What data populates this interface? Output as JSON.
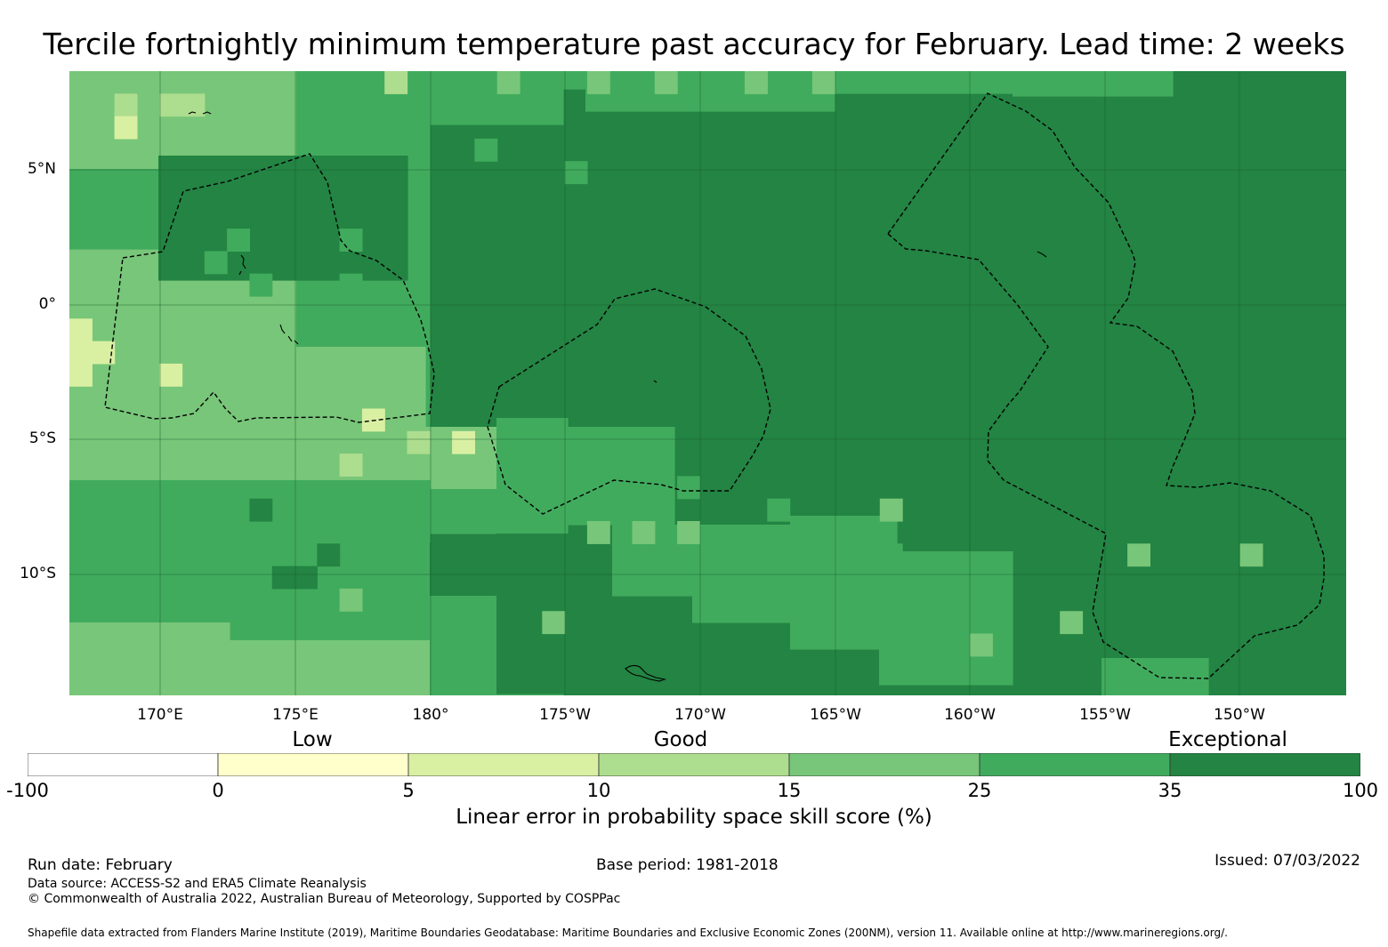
{
  "title": "Tercile fortnightly minimum temperature past accuracy for February. Lead time: 2 weeks",
  "map": {
    "lat_labels": [
      "5°N",
      "0°",
      "5°S",
      "10°S"
    ],
    "lon_labels": [
      "170°E",
      "175°E",
      "180°",
      "175°W",
      "170°W",
      "165°W",
      "160°W",
      "155°W",
      "150°W"
    ],
    "colors": {
      "exceptional": "#238443",
      "good_high": "#41ab5d",
      "good_mid": "#78c679",
      "good_low": "#addd8e",
      "low_high": "#d9f0a3",
      "low": "#ffffcc",
      "none": "#ffffff",
      "grid": "#1a5c2e",
      "boundary": "#000000"
    }
  },
  "legend": {
    "categories": [
      "Low",
      "Good",
      "Exceptional"
    ],
    "bin_labels": [
      "-100",
      "0",
      "5",
      "10",
      "15",
      "25",
      "35",
      "100"
    ],
    "bin_colors": [
      "#ffffff",
      "#ffffcc",
      "#d9f0a3",
      "#addd8e",
      "#78c679",
      "#41ab5d",
      "#238443"
    ],
    "title": "Linear error in probability space skill score (%)"
  },
  "footer": {
    "run_date": "Run date: February",
    "base_period": "Base period: 1981-2018",
    "issued": "Issued: 07/03/2022",
    "data_source": "Data source: ACCESS-S2 and ERA5 Climate Reanalysis",
    "copyright": "© Commonwealth of Australia 2022, Australian Bureau of Meteorology, Supported by COSPPac",
    "shapefile": "Shapefile data extracted from Flanders Marine Institute (2019), Maritime Boundaries Geodatabase: Maritime Boundaries and Exclusive Economic Zones (200NM), version 11. Available online at http://www.marineregions.org/."
  }
}
